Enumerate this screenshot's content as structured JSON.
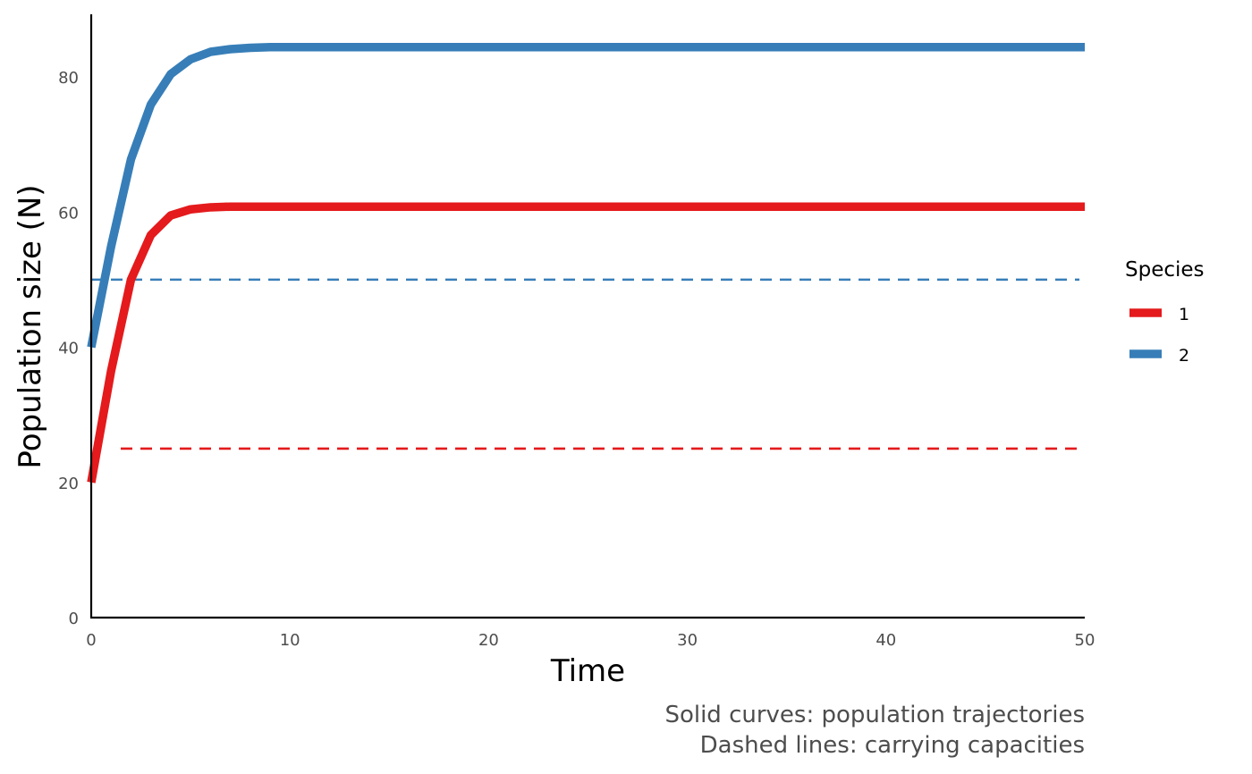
{
  "chart_data": {
    "type": "line",
    "title": "",
    "xlabel": "Time",
    "ylabel": "Population size (N)",
    "xlim": [
      0,
      50
    ],
    "ylim": [
      0,
      89
    ],
    "x_ticks": [
      0,
      10,
      20,
      30,
      40,
      50
    ],
    "y_ticks": [
      0,
      20,
      40,
      60,
      80
    ],
    "grid": false,
    "legend": {
      "title": "Species",
      "placement": "right",
      "entries": [
        {
          "label": "1",
          "color": "#e41a1c"
        },
        {
          "label": "2",
          "color": "#377eb8"
        }
      ]
    },
    "series": [
      {
        "name": "1",
        "color": "#e41a1c",
        "style": "solid",
        "x": [
          0,
          1,
          2,
          3,
          4,
          5,
          6,
          7,
          8,
          9,
          10,
          15,
          20,
          30,
          40,
          50
        ],
        "values": [
          20,
          36.5,
          50,
          56.6,
          59.5,
          60.4,
          60.7,
          60.8,
          60.8,
          60.8,
          60.8,
          60.8,
          60.8,
          60.8,
          60.8,
          60.8
        ]
      },
      {
        "name": "2",
        "color": "#377eb8",
        "style": "solid",
        "x": [
          0,
          1,
          2,
          3,
          4,
          5,
          6,
          7,
          8,
          9,
          10,
          15,
          20,
          30,
          40,
          50
        ],
        "values": [
          40,
          54.9,
          67.8,
          75.9,
          80.4,
          82.6,
          83.7,
          84.1,
          84.3,
          84.4,
          84.4,
          84.4,
          84.4,
          84.4,
          84.4,
          84.4
        ]
      }
    ],
    "reference_lines": [
      {
        "name": "carrying-capacity-1",
        "species": "1",
        "y": 25,
        "color": "#e41a1c",
        "style": "dashed",
        "x_start": 0,
        "x_end": 50
      },
      {
        "name": "carrying-capacity-2",
        "species": "2",
        "y": 50,
        "color": "#377eb8",
        "style": "dashed",
        "x_start": 0,
        "x_end": 50
      }
    ],
    "caption": [
      "Solid curves: population trajectories",
      "Dashed lines: carrying capacities"
    ]
  }
}
